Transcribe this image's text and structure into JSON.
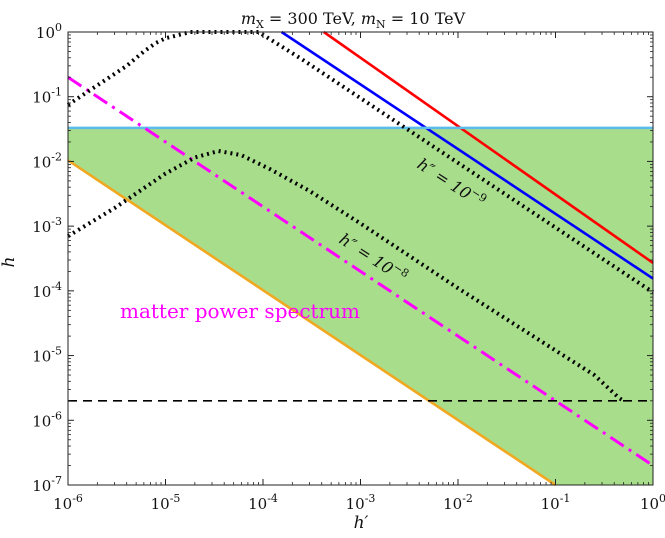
{
  "chart_data": {
    "type": "line",
    "title": "m_X = 300 TeV, m_N = 10 TeV",
    "title_parts": {
      "m1": "m",
      "s1": "X",
      "v1": " = 300 TeV, ",
      "m2": "m",
      "s2": "N",
      "v2": " = 10 TeV"
    },
    "xlabel": "h′",
    "ylabel": "h",
    "x_scale": "log",
    "y_scale": "log",
    "xlim": [
      1e-06,
      1
    ],
    "ylim": [
      1e-07,
      1
    ],
    "x_ticks": [
      {
        "base": "10",
        "exp": "-6"
      },
      {
        "base": "10",
        "exp": "-5"
      },
      {
        "base": "10",
        "exp": "-4"
      },
      {
        "base": "10",
        "exp": "-3"
      },
      {
        "base": "10",
        "exp": "-2"
      },
      {
        "base": "10",
        "exp": "-1"
      },
      {
        "base": "10",
        "exp": "0"
      }
    ],
    "y_ticks": [
      {
        "base": "10",
        "exp": "-7"
      },
      {
        "base": "10",
        "exp": "-6"
      },
      {
        "base": "10",
        "exp": "-5"
      },
      {
        "base": "10",
        "exp": "-4"
      },
      {
        "base": "10",
        "exp": "-3"
      },
      {
        "base": "10",
        "exp": "-2"
      },
      {
        "base": "10",
        "exp": "-1"
      },
      {
        "base": "10",
        "exp": "0"
      }
    ],
    "grid": false,
    "shaded_region": {
      "color": "#a8dd8c",
      "points": [
        [
          1e-06,
          0.033
        ],
        [
          1,
          0.033
        ],
        [
          1,
          1e-07
        ],
        [
          0.1,
          1e-07
        ],
        [
          1e-06,
          0.0104
        ]
      ]
    },
    "series": [
      {
        "color": "#ff0000",
        "style": "solid",
        "points": [
          [
            0.00042,
            1.0
          ],
          [
            1.0,
            0.00027
          ]
        ]
      },
      {
        "color": "#0000ff",
        "style": "solid",
        "points": [
          [
            0.000155,
            1.0
          ],
          [
            1.0,
            0.000155
          ]
        ]
      },
      {
        "color": "#5bbcec",
        "style": "solid",
        "points": [
          [
            1e-06,
            0.033
          ],
          [
            1.0,
            0.033
          ]
        ]
      },
      {
        "color": "#f0a820",
        "style": "solid",
        "points": [
          [
            1e-06,
            0.0104
          ],
          [
            0.1,
            1e-07
          ]
        ]
      },
      {
        "color": "#ff00ff",
        "style": "dashdot",
        "points": [
          [
            1e-06,
            0.2
          ],
          [
            1.0,
            2e-07
          ]
        ]
      },
      {
        "color": "#000000",
        "style": "dashed",
        "points": [
          [
            1e-06,
            2e-06
          ],
          [
            1.0,
            2e-06
          ]
        ]
      },
      {
        "color": "#000000",
        "style": "dotted",
        "label": "h″ = 10⁻⁹",
        "points": [
          [
            1e-06,
            0.075
          ],
          [
            2e-06,
            0.15
          ],
          [
            4e-06,
            0.3
          ],
          [
            6e-06,
            0.5
          ],
          [
            8e-06,
            0.68
          ],
          [
            1e-05,
            0.8
          ],
          [
            1.8e-05,
            1.0
          ],
          [
            9e-05,
            1.0
          ],
          [
            0.00025,
            0.38
          ],
          [
            0.001,
            0.095
          ],
          [
            0.01,
            0.0095
          ],
          [
            0.1,
            0.00095
          ],
          [
            1.0,
            9.5e-05
          ]
        ]
      },
      {
        "color": "#000000",
        "style": "dotted",
        "label": "h″ = 10⁻⁸",
        "points": [
          [
            1e-06,
            0.0007
          ],
          [
            3e-06,
            0.0019
          ],
          [
            1e-05,
            0.0065
          ],
          [
            2e-05,
            0.0115
          ],
          [
            3.5e-05,
            0.0145
          ],
          [
            6e-05,
            0.0125
          ],
          [
            0.00012,
            0.0075
          ],
          [
            0.0003,
            0.0035
          ],
          [
            0.001,
            0.0011
          ],
          [
            0.01,
            0.00011
          ],
          [
            0.1,
            1.2e-05
          ],
          [
            0.25,
            5e-06
          ],
          [
            0.45,
            2.2e-06
          ],
          [
            0.5,
            2e-06
          ]
        ]
      }
    ],
    "annotations": {
      "hpp9": {
        "text": "h″ = 10",
        "exp": "−9"
      },
      "hpp8": {
        "text": "h″ = 10",
        "exp": "−8"
      },
      "mps": {
        "text": "matter power spectrum"
      }
    }
  }
}
